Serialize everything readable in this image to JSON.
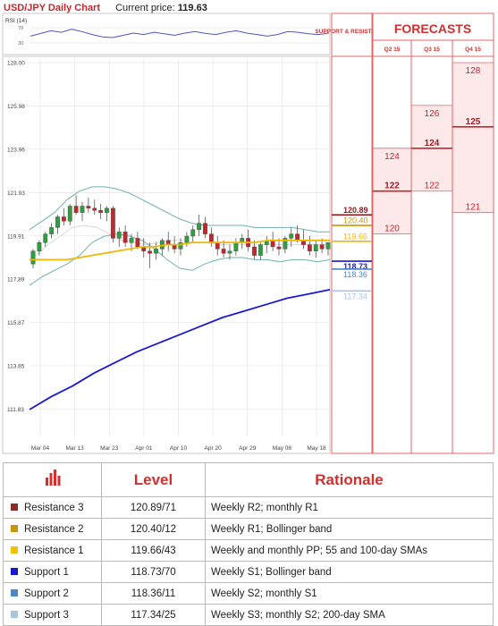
{
  "header": {
    "title": "USD/JPY Daily Chart",
    "current_label": "Current price:",
    "current_value": "119.63"
  },
  "rsi": {
    "label": "RSI (14)",
    "levels": [
      "70",
      "30"
    ]
  },
  "sr_header": "SUPPORT & RESISTANCE",
  "forecast": {
    "title": "FORECASTS",
    "quarters": [
      "Q2 15",
      "Q3 15",
      "Q4 15"
    ],
    "columns": [
      {
        "low": "120",
        "mid": "122",
        "high": "124"
      },
      {
        "low": "122",
        "mid": "124",
        "high": "126"
      },
      {
        "low": "121",
        "mid": "125",
        "high": "128"
      }
    ]
  },
  "levels": [
    {
      "value": "120.89",
      "color": "#8b1a1a"
    },
    {
      "value": "120.40",
      "color": "#c9950f"
    },
    {
      "value": "119.66",
      "color": "#f2b705"
    },
    {
      "value": "118.73",
      "color": "#1a1acb"
    },
    {
      "value": "118.36",
      "color": "#4f86c6"
    },
    {
      "value": "117.34",
      "color": "#a9c4e4"
    }
  ],
  "table": {
    "col_level": "Level",
    "col_rationale": "Rationale",
    "rows": [
      {
        "name": "Resistance 3",
        "level": "120.89/71",
        "rationale": "Weekly R2; monthly R1",
        "color": "#8b2a2a"
      },
      {
        "name": "Resistance 2",
        "level": "120.40/12",
        "rationale": "Weekly R1; Bollinger band",
        "color": "#c9950f"
      },
      {
        "name": "Resistance 1",
        "level": "119.66/43",
        "rationale": "Weekly and monthly PP; 55 and 100-day SMAs",
        "color": "#f2c200"
      },
      {
        "name": "Support 1",
        "level": "118.73/70",
        "rationale": "Weekly S1; Bollinger band",
        "color": "#1a1acb"
      },
      {
        "name": "Support 2",
        "level": "118.36/11",
        "rationale": "Weekly S2; monthly S1",
        "color": "#4f86c6"
      },
      {
        "name": "Support 3",
        "level": "117.34/25",
        "rationale": "Weekly S3; monthly S2; 200-day SMA",
        "color": "#a9c4e4"
      }
    ]
  },
  "chart_data": {
    "type": "line",
    "title": "USD/JPY Daily Chart",
    "ylim": [
      110.8,
      128.0
    ],
    "yticks": [
      "128.00",
      "125.98",
      "123.96",
      "121.93",
      "119.91",
      "117.89",
      "115.87",
      "113.85",
      "111.83"
    ],
    "xticks": [
      "Mar 04",
      "Mar 13",
      "Mar 23",
      "Apr 01",
      "Apr 10",
      "Apr 20",
      "Apr 29",
      "May 08",
      "May 18"
    ],
    "grid": true,
    "candles": [
      [
        118.6,
        119.3,
        118.4,
        119.2
      ],
      [
        119.2,
        119.7,
        119.0,
        119.6
      ],
      [
        119.6,
        120.1,
        119.4,
        120.0
      ],
      [
        120.0,
        120.5,
        119.8,
        120.3
      ],
      [
        120.3,
        120.9,
        120.0,
        120.8
      ],
      [
        120.8,
        121.2,
        120.4,
        120.6
      ],
      [
        120.6,
        121.4,
        120.4,
        121.3
      ],
      [
        121.3,
        121.8,
        120.9,
        121.0
      ],
      [
        121.0,
        121.5,
        120.6,
        121.3
      ],
      [
        121.3,
        121.7,
        121.0,
        121.2
      ],
      [
        121.2,
        121.6,
        120.9,
        121.1
      ],
      [
        121.1,
        121.4,
        120.7,
        121.0
      ],
      [
        121.0,
        121.3,
        120.6,
        121.2
      ],
      [
        121.2,
        121.3,
        119.6,
        119.8
      ],
      [
        119.8,
        120.3,
        119.4,
        120.1
      ],
      [
        120.1,
        120.4,
        119.4,
        119.6
      ],
      [
        119.6,
        120.0,
        119.2,
        119.8
      ],
      [
        119.8,
        120.1,
        119.3,
        119.4
      ],
      [
        119.4,
        119.8,
        118.9,
        119.2
      ],
      [
        119.2,
        119.6,
        118.4,
        119.1
      ],
      [
        119.1,
        119.6,
        118.8,
        119.3
      ],
      [
        119.3,
        119.8,
        119.0,
        119.7
      ],
      [
        119.7,
        120.1,
        119.2,
        119.5
      ],
      [
        119.5,
        119.9,
        119.1,
        119.3
      ],
      [
        119.3,
        119.8,
        119.0,
        119.6
      ],
      [
        119.6,
        120.1,
        119.4,
        119.9
      ],
      [
        119.9,
        120.4,
        119.6,
        120.2
      ],
      [
        120.2,
        120.9,
        119.9,
        120.5
      ],
      [
        120.5,
        120.8,
        119.8,
        120.0
      ],
      [
        120.0,
        120.3,
        119.4,
        119.6
      ],
      [
        119.6,
        119.9,
        119.0,
        119.3
      ],
      [
        119.3,
        119.7,
        118.9,
        119.1
      ],
      [
        119.1,
        119.5,
        118.8,
        119.2
      ],
      [
        119.2,
        119.8,
        119.0,
        119.6
      ],
      [
        119.6,
        120.0,
        119.3,
        119.8
      ],
      [
        119.8,
        120.2,
        119.2,
        119.4
      ],
      [
        119.4,
        119.7,
        118.8,
        119.0
      ],
      [
        119.0,
        119.6,
        118.8,
        119.5
      ],
      [
        119.5,
        119.9,
        119.1,
        119.7
      ],
      [
        119.7,
        120.1,
        119.2,
        119.4
      ],
      [
        119.4,
        119.8,
        119.0,
        119.3
      ],
      [
        119.3,
        119.9,
        119.1,
        119.8
      ],
      [
        119.8,
        120.3,
        119.4,
        120.0
      ],
      [
        120.0,
        120.4,
        119.6,
        119.7
      ],
      [
        119.7,
        120.2,
        119.3,
        119.5
      ],
      [
        119.5,
        119.9,
        119.0,
        119.2
      ],
      [
        119.2,
        119.7,
        118.9,
        119.5
      ],
      [
        119.5,
        119.8,
        119.1,
        119.3
      ],
      [
        119.3,
        119.6,
        119.0,
        119.6
      ]
    ],
    "bb_upper": [
      120.2,
      120.6,
      121.0,
      121.6,
      122.0,
      122.2,
      122.2,
      122.1,
      121.9,
      121.6,
      121.3,
      121.0,
      120.7,
      120.5,
      120.4,
      120.4,
      120.4,
      120.4,
      120.3,
      120.3,
      120.3,
      120.3,
      120.2,
      120.1,
      120.1
    ],
    "bb_lower": [
      117.6,
      118.0,
      118.3,
      118.6,
      119.0,
      119.6,
      119.9,
      120.0,
      119.9,
      119.7,
      119.3,
      118.8,
      118.4,
      118.3,
      118.6,
      118.8,
      118.9,
      118.9,
      118.8,
      118.8,
      118.7,
      118.8,
      118.8,
      118.7,
      118.8
    ],
    "sma_yellow": [
      118.8,
      118.8,
      118.8,
      118.8,
      118.9,
      119.0,
      119.1,
      119.2,
      119.3,
      119.4,
      119.4,
      119.5,
      119.5,
      119.6,
      119.6,
      119.6,
      119.6,
      119.6,
      119.6,
      119.7,
      119.7,
      119.7,
      119.7,
      119.7,
      119.7
    ],
    "sma_blue": [
      111.8,
      112.4,
      112.9,
      113.5,
      114.0,
      114.5,
      114.9,
      115.3,
      115.7,
      116.1,
      116.4,
      116.7,
      117.0,
      117.2,
      117.4
    ],
    "ma_gray": [
      119.0,
      119.5,
      119.9,
      120.3,
      120.4,
      120.3,
      120.0,
      119.7,
      119.6,
      119.5,
      119.6,
      119.7,
      119.7,
      119.6,
      119.6,
      119.5,
      119.5,
      119.5,
      119.5,
      119.5,
      119.5,
      119.5,
      119.5,
      119.5,
      119.5
    ],
    "rsi": [
      48,
      55,
      62,
      58,
      66,
      60,
      52,
      46,
      44,
      50,
      56,
      52,
      58,
      54,
      50,
      56,
      60,
      55,
      52,
      58,
      62,
      56,
      52,
      48,
      52,
      60,
      58,
      54,
      52,
      56
    ]
  }
}
